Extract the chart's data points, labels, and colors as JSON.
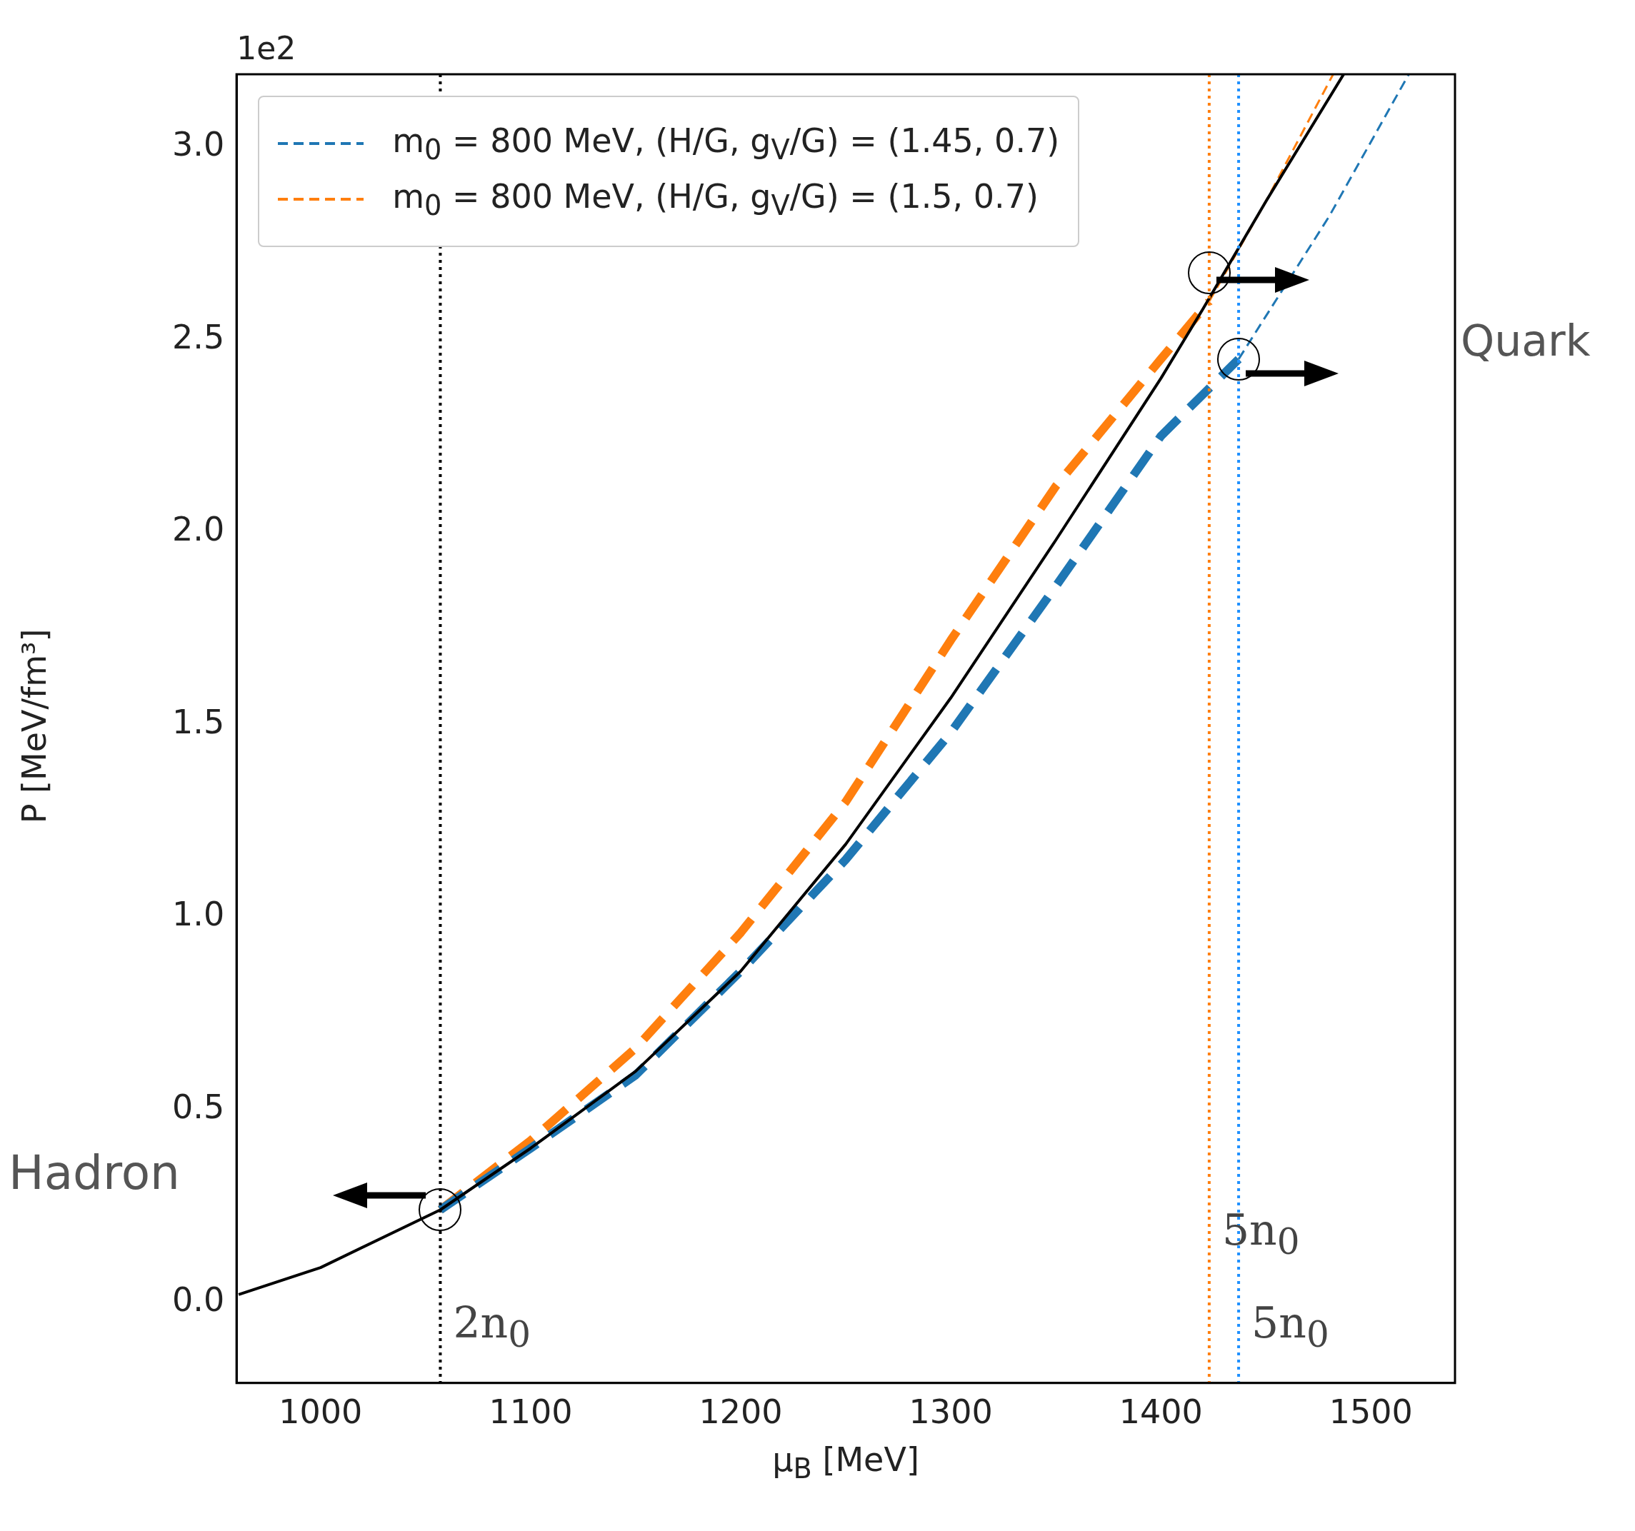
{
  "chart_data": {
    "type": "line",
    "xlabel": "μ$_{B}$ [MeV]",
    "ylabel": "P [MeV/fm³]",
    "xlim": [
      960,
      1540
    ],
    "ylim": [
      -0.21,
      3.19
    ],
    "xticks": [
      1000,
      1100,
      1200,
      1300,
      1400,
      1500
    ],
    "yticks": [
      {
        "value": 0,
        "label": "0.0"
      },
      0.5,
      {
        "value": 1,
        "label": "1.0"
      },
      1.5,
      {
        "value": 2,
        "label": "2.0"
      },
      2.5,
      {
        "value": 3,
        "label": "3.0"
      }
    ],
    "series": [
      {
        "color": "#000000",
        "line_style": "solid",
        "x": [
          961,
          1000,
          1057,
          1100,
          1150,
          1200,
          1250,
          1300,
          1350,
          1400,
          1420,
          1450,
          1487
        ],
        "values": [
          0.02,
          0.09,
          0.24,
          0.4,
          0.6,
          0.86,
          1.19,
          1.57,
          1.98,
          2.4,
          2.58,
          2.86,
          3.19
        ]
      },
      {
        "name": "m$_{0}$ = 800 MeV, (H/G, g$_{V}$/G) = (1.45, 0.7)",
        "color": "#1f77b4",
        "line_style": "dashed",
        "x": [
          1057,
          1100,
          1150,
          1200,
          1250,
          1300,
          1350,
          1400,
          1437,
          1480,
          1518
        ],
        "values": [
          0.24,
          0.4,
          0.59,
          0.86,
          1.15,
          1.48,
          1.86,
          2.25,
          2.45,
          2.82,
          3.19
        ]
      },
      {
        "name": "m$_{0}$ = 800 MeV, (H/G, g$_{V}$/G) = (1.5, 0.7)",
        "color": "#ff7f0e",
        "line_style": "dashed",
        "x": [
          1057,
          1100,
          1150,
          1200,
          1250,
          1300,
          1350,
          1400,
          1423,
          1450,
          1482
        ],
        "values": [
          0.24,
          0.42,
          0.66,
          0.96,
          1.3,
          1.72,
          2.12,
          2.45,
          2.6,
          2.86,
          3.19
        ]
      }
    ],
    "ref_lines": [
      {
        "axis": "x",
        "value": 1057,
        "label": "2n$_{0}$",
        "color": "#000000",
        "line_style": "dotted"
      },
      {
        "axis": "x",
        "value": 1437,
        "label": "5n$_{0}$",
        "color": "#1e90ff",
        "line_style": "dotted"
      },
      {
        "axis": "x",
        "value": 1423,
        "label": "5n$_{0}$",
        "color": "#ff7f0e",
        "line_style": "dotted"
      }
    ],
    "annotations": [
      "1e2",
      "Hadron",
      "Quark"
    ],
    "legend": "top left",
    "grid": false,
    "marker": "none"
  }
}
